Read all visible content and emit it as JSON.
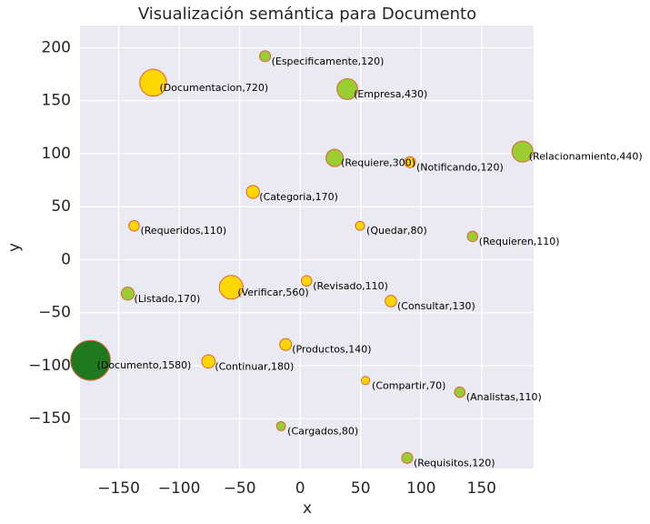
{
  "chart_data": {
    "type": "scatter",
    "title": "Visualización semántica para Documento",
    "x_label": "x",
    "y_label": "y",
    "xlim": [
      -182,
      193
    ],
    "ylim": [
      -197,
      221
    ],
    "xticks": [
      {
        "value": -150,
        "label": "−150"
      },
      {
        "value": -100,
        "label": "−100"
      },
      {
        "value": -50,
        "label": "−50"
      },
      0,
      50,
      100,
      150
    ],
    "yticks": [
      {
        "value": -150,
        "label": "−150"
      },
      {
        "value": -100,
        "label": "−100"
      },
      {
        "value": -50,
        "label": "−50"
      },
      0,
      50,
      100,
      150,
      200
    ],
    "grid": true,
    "edge_color": "#e0603a",
    "x": [
      -29,
      -121.5,
      39,
      28.5,
      90.8,
      183.8,
      -39,
      -137.3,
      49.5,
      142.5,
      5.3,
      -57,
      -142.5,
      75,
      -12,
      -173.3,
      -75.8,
      54,
      132,
      -15.8,
      88.5
    ],
    "values": [
      192,
      167,
      161,
      96,
      92,
      102,
      64,
      32,
      32,
      22,
      -20,
      -26,
      -32,
      -39,
      -80,
      -95,
      -96,
      -114,
      -125,
      -157,
      -187
    ],
    "sizes": [
      120,
      720,
      430,
      300,
      120,
      440,
      170,
      110,
      80,
      110,
      110,
      560,
      170,
      130,
      140,
      1580,
      180,
      70,
      110,
      80,
      120
    ],
    "value_labels": [
      "(Especificamente,120)",
      "(Documentacion,720)",
      "(Empresa,430)",
      "(Requiere,300)",
      "(Notificando,120)",
      "(Relacionamiento,440)",
      "(Categoria,170)",
      "(Requeridos,110)",
      "(Quedar,80)",
      "(Requieren,110)",
      "(Revisado,110)",
      "(Verificar,560)",
      "(Listado,170)",
      "(Consultar,130)",
      "(Productos,140)",
      "(Documento,1580)",
      "(Continuar,180)",
      "(Compartir,70)",
      "(Analistas,110)",
      "(Cargados,80)",
      "(Requisitos,120)"
    ],
    "colors": [
      "#9acd32",
      "#ffd700",
      "#9acd32",
      "#9acd32",
      "#ffd700",
      "#9acd32",
      "#ffd700",
      "#ffd700",
      "#ffd700",
      "#9acd32",
      "#ffd700",
      "#ffd700",
      "#9acd32",
      "#ffd700",
      "#ffd700",
      "#1f7a1f",
      "#ffd700",
      "#ffd700",
      "#9acd32",
      "#9acd32",
      "#9acd32"
    ]
  }
}
